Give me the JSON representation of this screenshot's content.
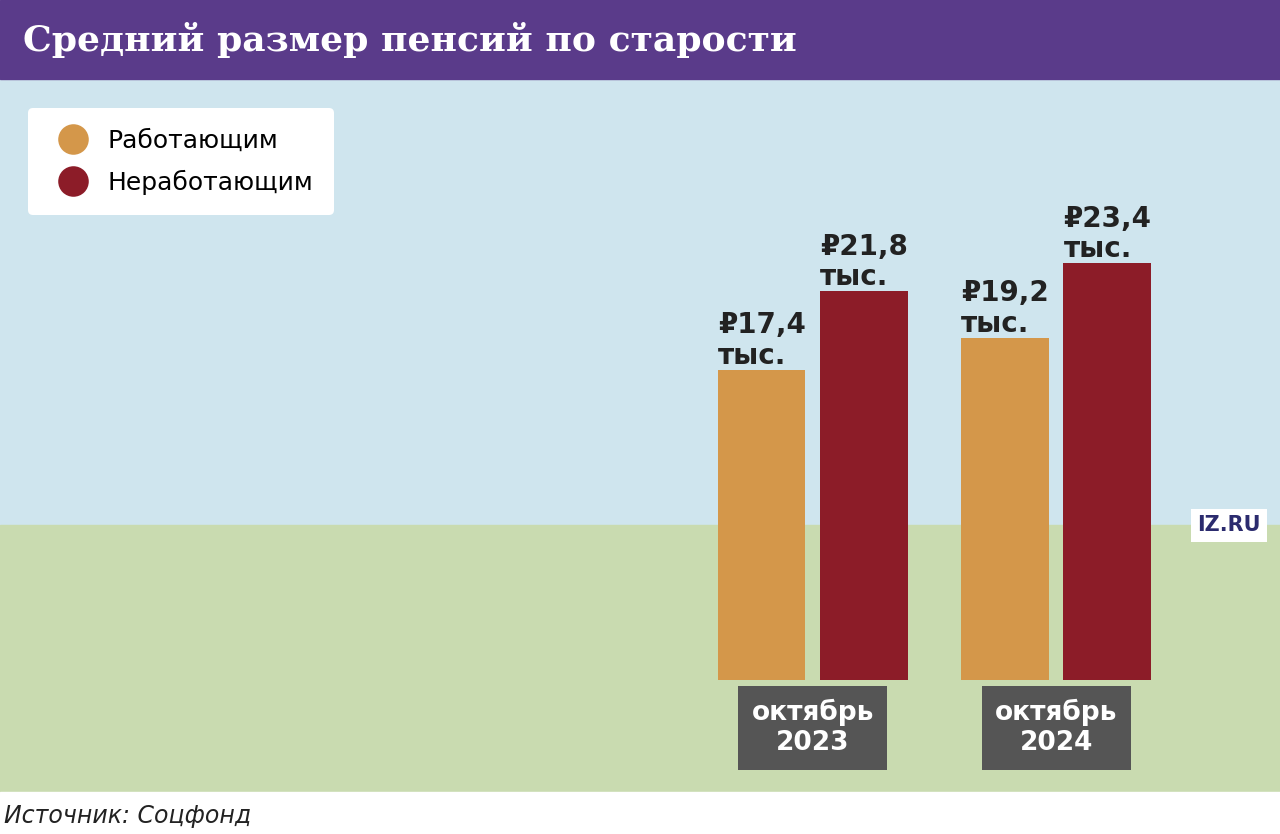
{
  "chart_data": {
    "type": "bar",
    "title": "Средний размер пенсий по старости",
    "categories": [
      "октябрь\n2023",
      "октябрь\n2024"
    ],
    "series": [
      {
        "name": "Работающим",
        "color": "#d4974a",
        "values": [
          17.4,
          19.2
        ],
        "value_labels": [
          "₽17,4\nтыс.",
          "₽19,2\nтыс."
        ]
      },
      {
        "name": "Неработающим",
        "color": "#8c1c28",
        "values": [
          21.8,
          23.4
        ],
        "value_labels": [
          "₽21,8\nтыс.",
          "₽23,4\nтыс."
        ]
      }
    ],
    "data_labels": true,
    "legend": "upper left",
    "tick_labels": "x",
    "grid": false,
    "source": "Источник: Соцфонд",
    "logo": "IZ.RU"
  }
}
